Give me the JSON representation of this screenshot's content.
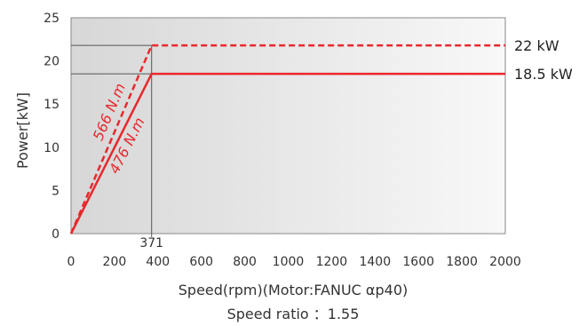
{
  "chart_data": {
    "type": "line",
    "xlabel": "Speed(rpm)(Motor:FANUC αp40)",
    "ylabel": "Power[kW]",
    "subtitle": "Speed ratio ：1.55",
    "xlim": [
      0,
      2000
    ],
    "ylim": [
      0,
      25
    ],
    "x_ticks": [
      "0",
      "200",
      "400",
      "600",
      "800",
      "1000",
      "1200",
      "1400",
      "1600",
      "1800",
      "2000"
    ],
    "y_ticks": [
      "0",
      "5",
      "10",
      "15",
      "20",
      "25"
    ],
    "x_tick_values": [
      0,
      200,
      400,
      600,
      800,
      1000,
      1200,
      1400,
      1600,
      1800,
      2000
    ],
    "y_tick_values": [
      0,
      5,
      10,
      15,
      20,
      25
    ],
    "base_speed_label": "371",
    "base_speed": 371,
    "series": [
      {
        "name": "22 kW",
        "style": "dashed",
        "color": "#e8282d",
        "x": [
          0,
          371,
          2000
        ],
        "y": [
          0,
          21.8,
          21.8
        ],
        "slope_label": "566 N.m"
      },
      {
        "name": "18.5 kW",
        "style": "solid",
        "color": "#e8282d",
        "x": [
          0,
          371,
          2000
        ],
        "y": [
          0,
          18.5,
          18.5
        ],
        "slope_label": "476 N.m"
      }
    ],
    "grid": false,
    "background": "gradient-gray"
  }
}
